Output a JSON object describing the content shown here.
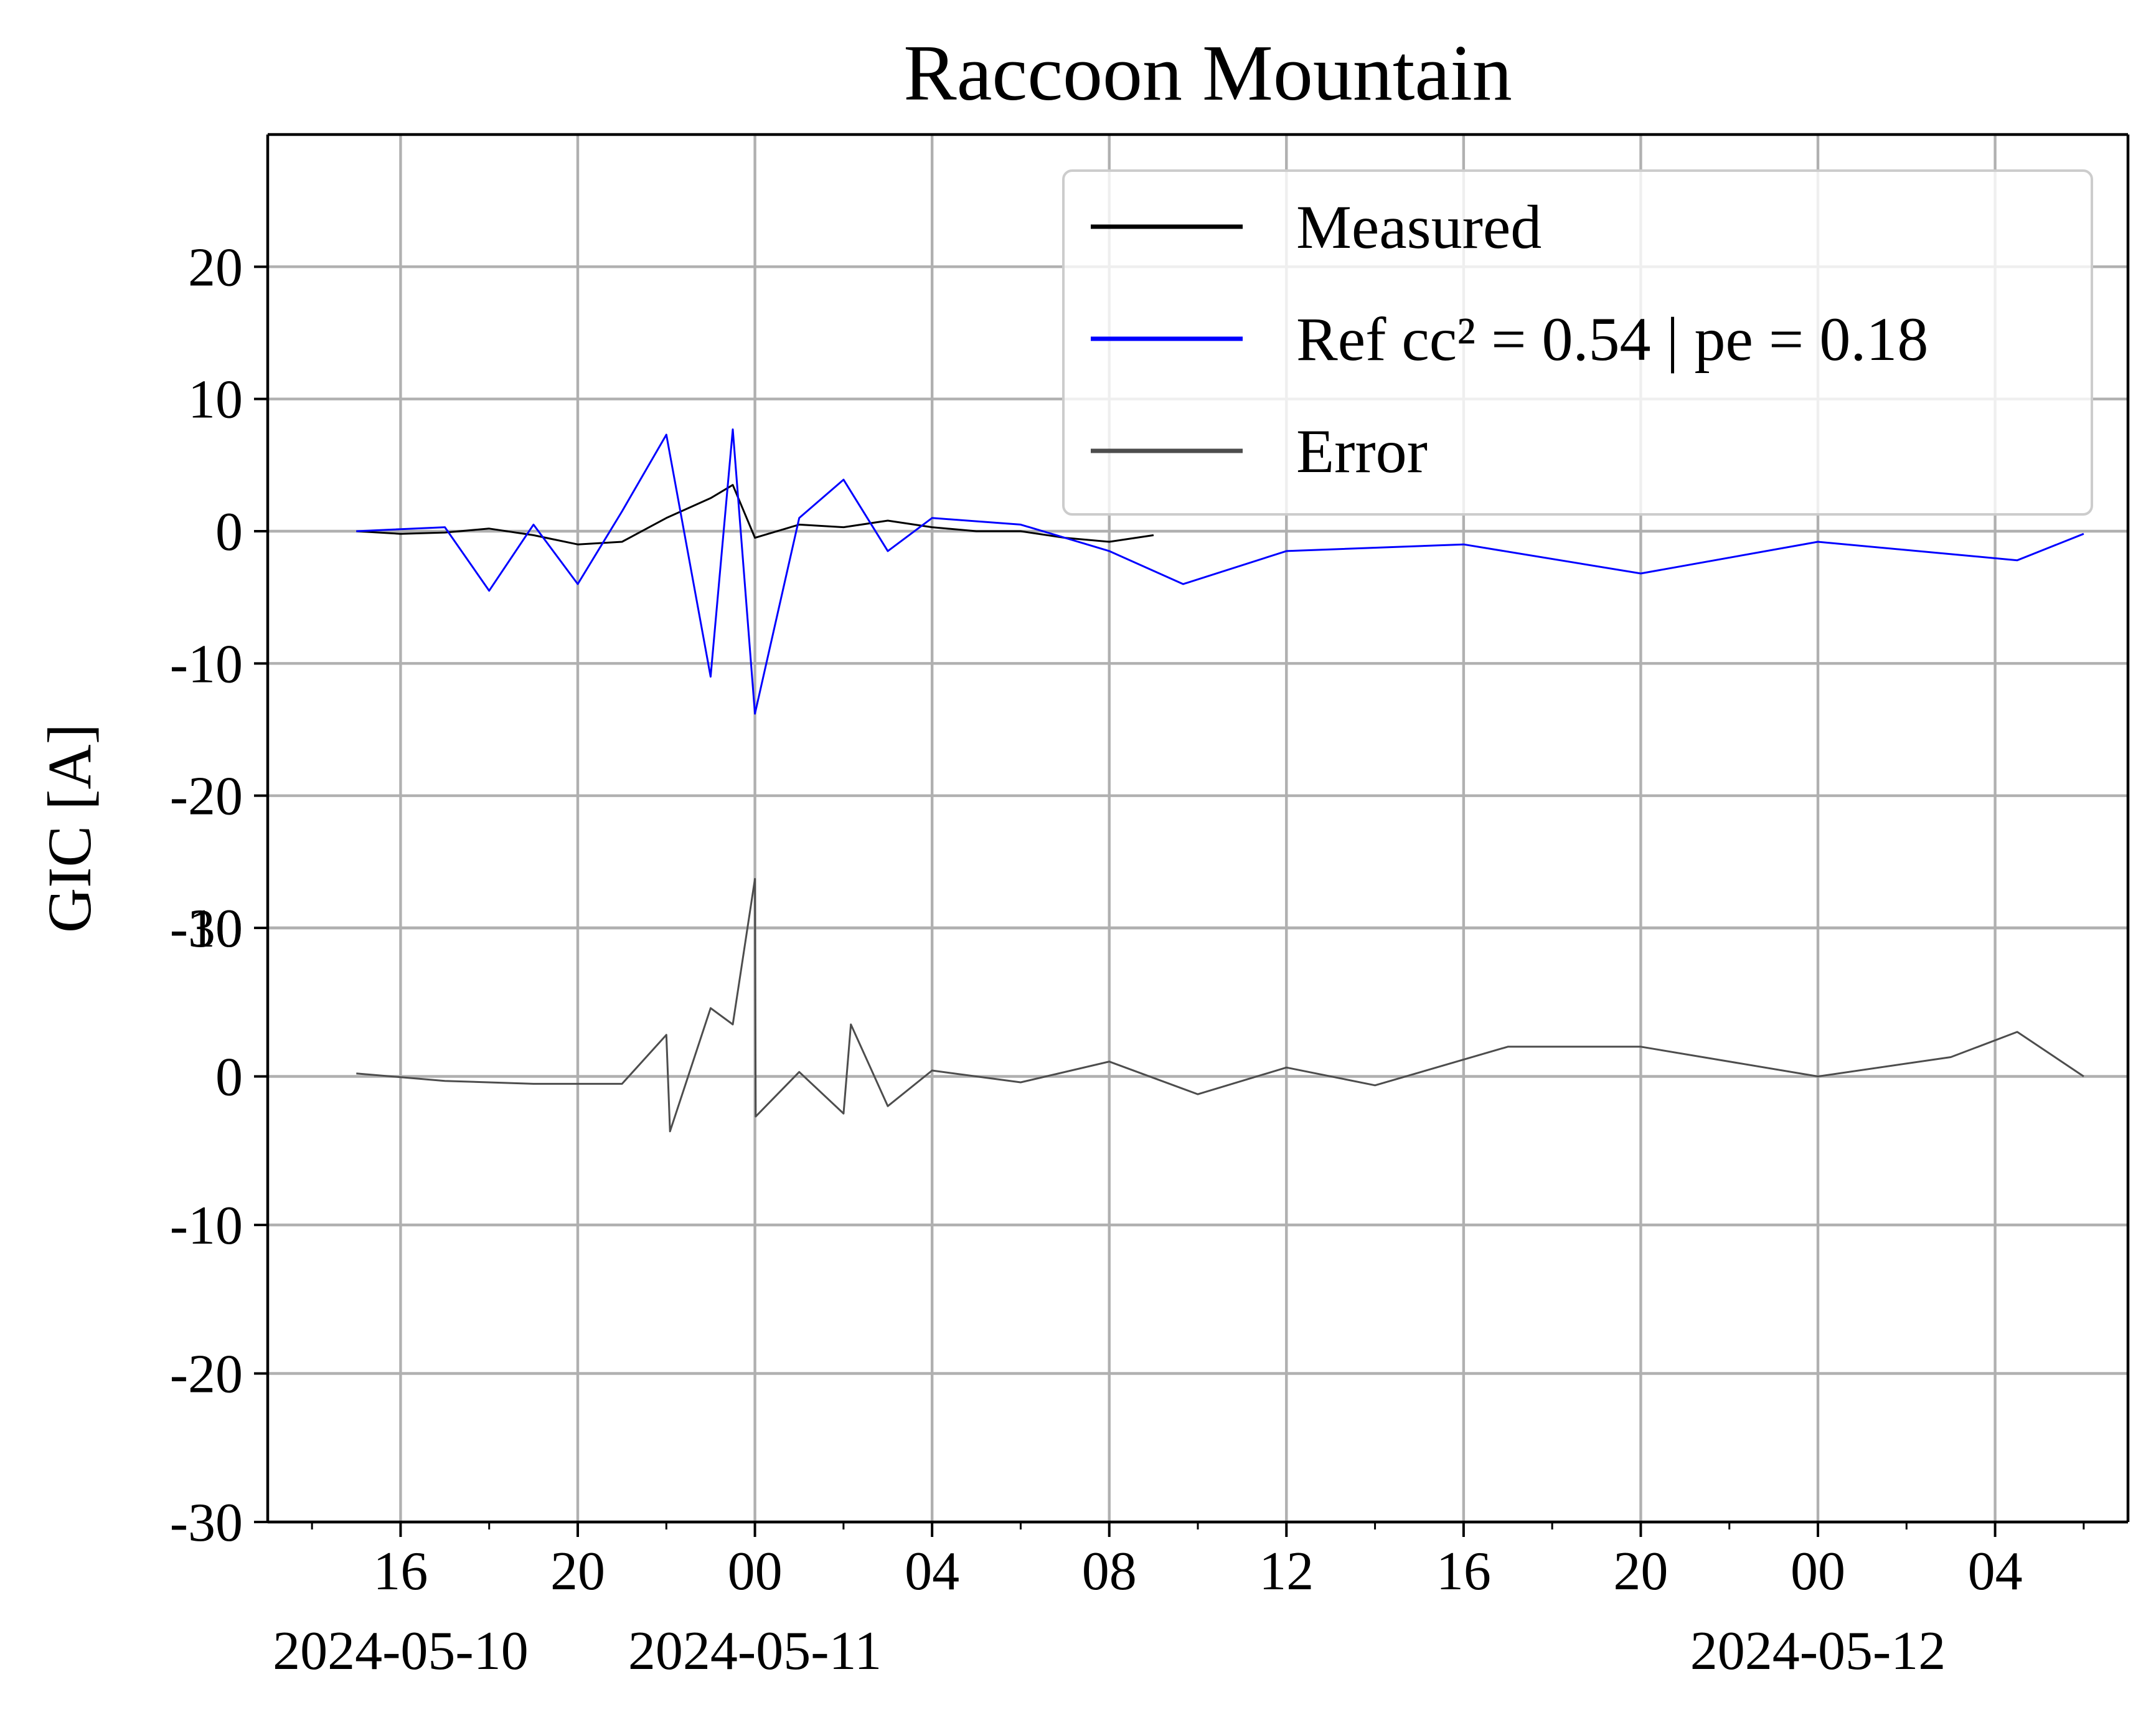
{
  "chart_data": {
    "type": "line",
    "title": "Raccoon Mountain",
    "ylabel": "GIC [A]",
    "xaxis": {
      "start": "2024-05-10T13:00",
      "end": "2024-05-12T07:00",
      "tick_labels": [
        "16",
        "20",
        "00",
        "04",
        "08",
        "12",
        "16",
        "20",
        "00",
        "04"
      ],
      "tick_times": [
        "2024-05-10T16:00",
        "2024-05-10T20:00",
        "2024-05-11T00:00",
        "2024-05-11T04:00",
        "2024-05-11T08:00",
        "2024-05-11T12:00",
        "2024-05-11T16:00",
        "2024-05-11T20:00",
        "2024-05-12T00:00",
        "2024-05-12T04:00"
      ],
      "date_labels": [
        {
          "time": "2024-05-10T16:00",
          "text": "2024-05-10"
        },
        {
          "time": "2024-05-11T00:00",
          "text": "2024-05-11"
        },
        {
          "time": "2024-05-12T00:00",
          "text": "2024-05-12"
        }
      ]
    },
    "panels": [
      {
        "ylim": [
          -30,
          30
        ],
        "yticks": [
          "20",
          "10",
          "0",
          "-10",
          "-20",
          "-30"
        ],
        "grid": true,
        "legend_position": "top-right",
        "series": [
          {
            "name": "Measured",
            "color": "#000000",
            "points": [
              [
                "2024-05-10T15:00",
                0.0
              ],
              [
                "2024-05-10T16:00",
                -0.2
              ],
              [
                "2024-05-10T17:00",
                -0.1
              ],
              [
                "2024-05-10T18:00",
                0.2
              ],
              [
                "2024-05-10T19:00",
                -0.3
              ],
              [
                "2024-05-10T20:00",
                -1.0
              ],
              [
                "2024-05-10T21:00",
                -0.8
              ],
              [
                "2024-05-10T22:00",
                1.0
              ],
              [
                "2024-05-10T23:00",
                2.5
              ],
              [
                "2024-05-10T23:30",
                3.5
              ],
              [
                "2024-05-11T00:00",
                -0.5
              ],
              [
                "2024-05-11T01:00",
                0.5
              ],
              [
                "2024-05-11T02:00",
                0.3
              ],
              [
                "2024-05-11T03:00",
                0.8
              ],
              [
                "2024-05-11T04:00",
                0.3
              ],
              [
                "2024-05-11T05:00",
                0.0
              ],
              [
                "2024-05-11T06:00",
                0.0
              ],
              [
                "2024-05-11T07:00",
                -0.5
              ],
              [
                "2024-05-11T08:00",
                -0.8
              ],
              [
                "2024-05-11T09:00",
                -0.3
              ]
            ]
          },
          {
            "name": "Ref  cc² = 0.54 | pe = 0.18",
            "color": "#0000ff",
            "points": [
              [
                "2024-05-10T15:00",
                0.0
              ],
              [
                "2024-05-10T17:00",
                0.3
              ],
              [
                "2024-05-10T18:00",
                -4.5
              ],
              [
                "2024-05-10T19:00",
                0.5
              ],
              [
                "2024-05-10T20:00",
                -4.0
              ],
              [
                "2024-05-10T21:00",
                1.5
              ],
              [
                "2024-05-10T22:00",
                7.3
              ],
              [
                "2024-05-10T23:00",
                -11.0
              ],
              [
                "2024-05-10T23:30",
                7.7
              ],
              [
                "2024-05-11T00:00",
                -13.8
              ],
              [
                "2024-05-11T01:00",
                1.0
              ],
              [
                "2024-05-11T02:00",
                3.9
              ],
              [
                "2024-05-11T03:00",
                -1.5
              ],
              [
                "2024-05-11T04:00",
                1.0
              ],
              [
                "2024-05-11T06:00",
                0.5
              ],
              [
                "2024-05-11T08:00",
                -1.5
              ],
              [
                "2024-05-11T09:40",
                -4.0
              ],
              [
                "2024-05-11T12:00",
                -1.5
              ],
              [
                "2024-05-11T16:00",
                -1.0
              ],
              [
                "2024-05-11T20:00",
                -3.2
              ],
              [
                "2024-05-12T00:00",
                -0.8
              ],
              [
                "2024-05-12T04:30",
                -2.2
              ],
              [
                "2024-05-12T06:00",
                -0.2
              ]
            ]
          }
        ]
      },
      {
        "ylim": [
          -30,
          10
        ],
        "yticks": [
          "10",
          "0",
          "-10",
          "-20",
          "-30"
        ],
        "grid": true,
        "series": [
          {
            "name": "Error",
            "color": "#4d4d4d",
            "points": [
              [
                "2024-05-10T15:00",
                0.2
              ],
              [
                "2024-05-10T17:00",
                -0.3
              ],
              [
                "2024-05-10T19:00",
                -0.5
              ],
              [
                "2024-05-10T21:00",
                -0.5
              ],
              [
                "2024-05-10T22:00",
                2.8
              ],
              [
                "2024-05-10T22:05",
                -3.7
              ],
              [
                "2024-05-10T23:00",
                4.6
              ],
              [
                "2024-05-10T23:30",
                3.5
              ],
              [
                "2024-05-11T00:00",
                13.3
              ],
              [
                "2024-05-11T00:01",
                -2.7
              ],
              [
                "2024-05-11T01:00",
                0.3
              ],
              [
                "2024-05-11T02:00",
                -2.5
              ],
              [
                "2024-05-11T02:10",
                3.5
              ],
              [
                "2024-05-11T03:00",
                -2.0
              ],
              [
                "2024-05-11T04:00",
                0.4
              ],
              [
                "2024-05-11T06:00",
                -0.4
              ],
              [
                "2024-05-11T08:00",
                1.0
              ],
              [
                "2024-05-11T10:00",
                -1.2
              ],
              [
                "2024-05-11T12:00",
                0.6
              ],
              [
                "2024-05-11T14:00",
                -0.6
              ],
              [
                "2024-05-11T17:00",
                2.0
              ],
              [
                "2024-05-11T20:00",
                2.0
              ],
              [
                "2024-05-12T00:00",
                0.0
              ],
              [
                "2024-05-12T03:00",
                1.3
              ],
              [
                "2024-05-12T04:30",
                3.0
              ],
              [
                "2024-05-12T06:00",
                0.0
              ]
            ]
          }
        ]
      }
    ]
  }
}
